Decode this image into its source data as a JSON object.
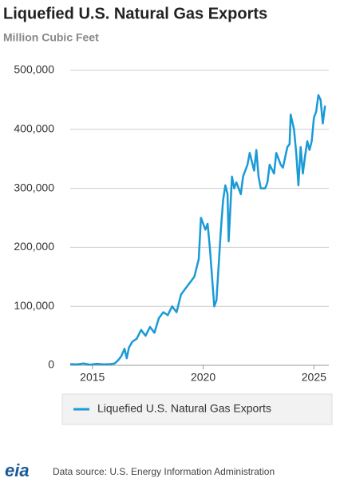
{
  "chart_data": {
    "type": "line",
    "title": "Liquefied U.S. Natural Gas Exports",
    "subtitle": "Million Cubic Feet",
    "source": "Data source: U.S. Energy Information Administration",
    "logo": "eia",
    "x": [
      2014.0,
      2014.3,
      2014.6,
      2014.9,
      2015.2,
      2015.5,
      2015.8,
      2016.0,
      2016.15,
      2016.3,
      2016.45,
      2016.55,
      2016.65,
      2016.8,
      2017.0,
      2017.2,
      2017.4,
      2017.6,
      2017.8,
      2018.0,
      2018.2,
      2018.4,
      2018.6,
      2018.8,
      2019.0,
      2019.2,
      2019.4,
      2019.6,
      2019.8,
      2019.9,
      2020.1,
      2020.2,
      2020.3,
      2020.4,
      2020.5,
      2020.6,
      2020.7,
      2020.8,
      2020.9,
      2021.0,
      2021.1,
      2021.15,
      2021.3,
      2021.4,
      2021.5,
      2021.7,
      2021.8,
      2022.0,
      2022.1,
      2022.3,
      2022.4,
      2022.5,
      2022.6,
      2022.8,
      2022.9,
      2023.0,
      2023.2,
      2023.3,
      2023.5,
      2023.6,
      2023.8,
      2023.9,
      2023.95,
      2024.1,
      2024.2,
      2024.3,
      2024.4,
      2024.5,
      2024.6,
      2024.7,
      2024.8,
      2024.9,
      2025.0,
      2025.1,
      2025.2,
      2025.3,
      2025.4,
      2025.5
    ],
    "series": [
      {
        "name": "Liquefied U.S. Natural Gas Exports",
        "color": "#1a9ad6",
        "values": [
          2000,
          1500,
          3000,
          1000,
          2500,
          1500,
          2000,
          3000,
          8000,
          15000,
          28000,
          12000,
          30000,
          40000,
          45000,
          60000,
          50000,
          65000,
          55000,
          80000,
          90000,
          85000,
          100000,
          90000,
          120000,
          130000,
          140000,
          150000,
          180000,
          250000,
          230000,
          240000,
          200000,
          150000,
          100000,
          110000,
          170000,
          230000,
          280000,
          305000,
          290000,
          210000,
          320000,
          300000,
          310000,
          290000,
          320000,
          340000,
          360000,
          330000,
          365000,
          320000,
          300000,
          300000,
          310000,
          340000,
          325000,
          360000,
          340000,
          335000,
          370000,
          375000,
          425000,
          400000,
          360000,
          305000,
          370000,
          325000,
          355000,
          380000,
          365000,
          380000,
          420000,
          430000,
          458000,
          450000,
          410000,
          440000
        ]
      }
    ],
    "xlim": [
      2014.0,
      2025.6
    ],
    "ylim": [
      0,
      500000
    ],
    "xticks": [
      2015,
      2020,
      2025
    ],
    "yticks": [
      0,
      {
        "value": 100000,
        "label": "100,000"
      },
      {
        "value": 200000,
        "label": "200,000"
      },
      {
        "value": 300000,
        "label": "300,000"
      },
      {
        "value": 400000,
        "label": "400,000"
      },
      {
        "value": 500000,
        "label": "500,000"
      }
    ],
    "grid": true
  }
}
